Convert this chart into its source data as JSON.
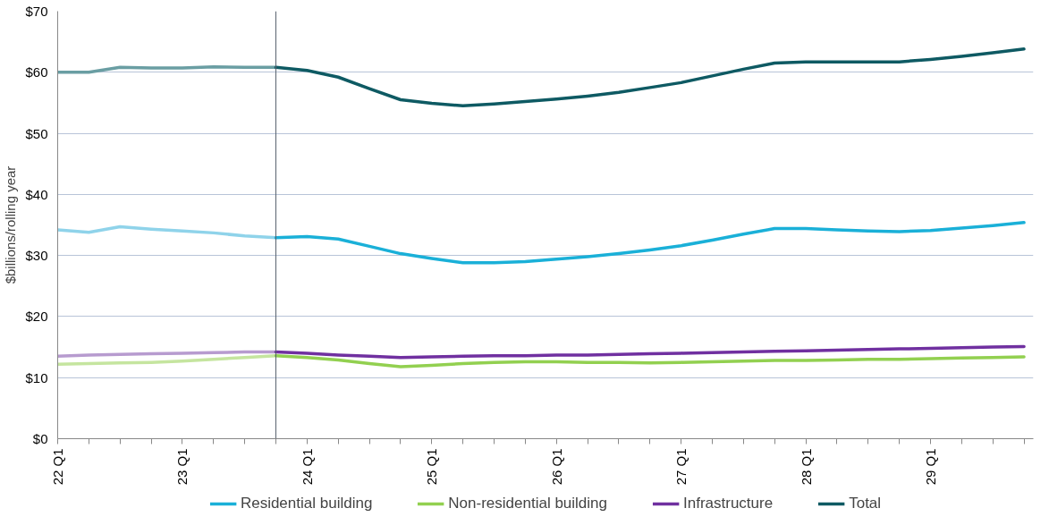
{
  "chart_data": {
    "type": "line",
    "ylabel": "$billions/rolling year",
    "ylim": [
      0,
      70
    ],
    "categories": [
      "22 Q1",
      null,
      null,
      null,
      "23 Q1",
      null,
      null,
      null,
      "24 Q1",
      null,
      null,
      null,
      "25 Q1",
      null,
      null,
      null,
      "26 Q1",
      null,
      null,
      null,
      "27 Q1",
      null,
      null,
      null,
      "28 Q1",
      null,
      null,
      null,
      "29 Q1",
      null,
      null,
      null
    ],
    "yticks": [
      {
        "value": 0,
        "label": "$0"
      },
      {
        "value": 10,
        "label": "$10"
      },
      {
        "value": 20,
        "label": "$20"
      },
      {
        "value": 30,
        "label": "$30"
      },
      {
        "value": 40,
        "label": "$40"
      },
      {
        "value": 50,
        "label": "$50"
      },
      {
        "value": 60,
        "label": "$60"
      },
      {
        "value": 70,
        "label": "$70"
      }
    ],
    "grid": "y",
    "legend": "bottom",
    "series": [
      {
        "color": "#8fd3ea",
        "values": [
          34.2,
          33.8,
          34.7,
          34.3,
          34.0,
          33.7,
          33.2,
          32.9,
          null,
          null,
          null,
          null,
          null,
          null,
          null,
          null,
          null,
          null,
          null,
          null,
          null,
          null,
          null,
          null,
          null,
          null,
          null,
          null,
          null,
          null,
          null,
          null
        ]
      },
      {
        "color": "#c5e59f",
        "values": [
          12.2,
          12.3,
          12.4,
          12.5,
          12.7,
          13.0,
          13.3,
          13.6,
          null,
          null,
          null,
          null,
          null,
          null,
          null,
          null,
          null,
          null,
          null,
          null,
          null,
          null,
          null,
          null,
          null,
          null,
          null,
          null,
          null,
          null,
          null,
          null
        ]
      },
      {
        "color": "#b79bcf",
        "values": [
          13.5,
          13.7,
          13.8,
          13.9,
          14.0,
          14.1,
          14.2,
          14.2,
          null,
          null,
          null,
          null,
          null,
          null,
          null,
          null,
          null,
          null,
          null,
          null,
          null,
          null,
          null,
          null,
          null,
          null,
          null,
          null,
          null,
          null,
          null,
          null
        ]
      },
      {
        "color": "#6a9ea3",
        "values": [
          60.0,
          60.0,
          60.8,
          60.7,
          60.7,
          60.9,
          60.8,
          60.8,
          null,
          null,
          null,
          null,
          null,
          null,
          null,
          null,
          null,
          null,
          null,
          null,
          null,
          null,
          null,
          null,
          null,
          null,
          null,
          null,
          null,
          null,
          null,
          null
        ]
      },
      {
        "name": "Residential building",
        "color": "#1ab0d8",
        "values": [
          null,
          null,
          null,
          null,
          null,
          null,
          null,
          32.9,
          33.1,
          32.7,
          31.5,
          30.3,
          29.5,
          28.8,
          28.8,
          29.0,
          29.4,
          29.8,
          30.3,
          30.9,
          31.6,
          32.5,
          33.5,
          34.4,
          34.4,
          34.2,
          34.0,
          33.9,
          34.1,
          34.5,
          34.9,
          35.4
        ]
      },
      {
        "name": "Non-residential building",
        "color": "#92d050",
        "values": [
          null,
          null,
          null,
          null,
          null,
          null,
          null,
          13.6,
          13.3,
          12.9,
          12.3,
          11.8,
          12.0,
          12.3,
          12.5,
          12.6,
          12.6,
          12.5,
          12.5,
          12.4,
          12.5,
          12.6,
          12.7,
          12.8,
          12.8,
          12.9,
          13.0,
          13.0,
          13.1,
          13.2,
          13.3,
          13.4
        ]
      },
      {
        "name": "Infrastructure",
        "color": "#7030a0",
        "values": [
          null,
          null,
          null,
          null,
          null,
          null,
          null,
          14.2,
          14.0,
          13.7,
          13.5,
          13.3,
          13.4,
          13.5,
          13.6,
          13.6,
          13.7,
          13.7,
          13.8,
          13.9,
          14.0,
          14.1,
          14.2,
          14.3,
          14.4,
          14.5,
          14.6,
          14.7,
          14.8,
          14.9,
          15.0,
          15.1
        ]
      },
      {
        "name": "Total",
        "color": "#0e5a63",
        "values": [
          null,
          null,
          null,
          null,
          null,
          null,
          null,
          60.8,
          60.3,
          59.2,
          57.3,
          55.5,
          54.9,
          54.5,
          54.8,
          55.2,
          55.6,
          56.1,
          56.7,
          57.5,
          58.3,
          59.4,
          60.5,
          61.5,
          61.7,
          61.7,
          61.7,
          61.7,
          62.1,
          62.6,
          63.2,
          63.8
        ]
      }
    ]
  }
}
